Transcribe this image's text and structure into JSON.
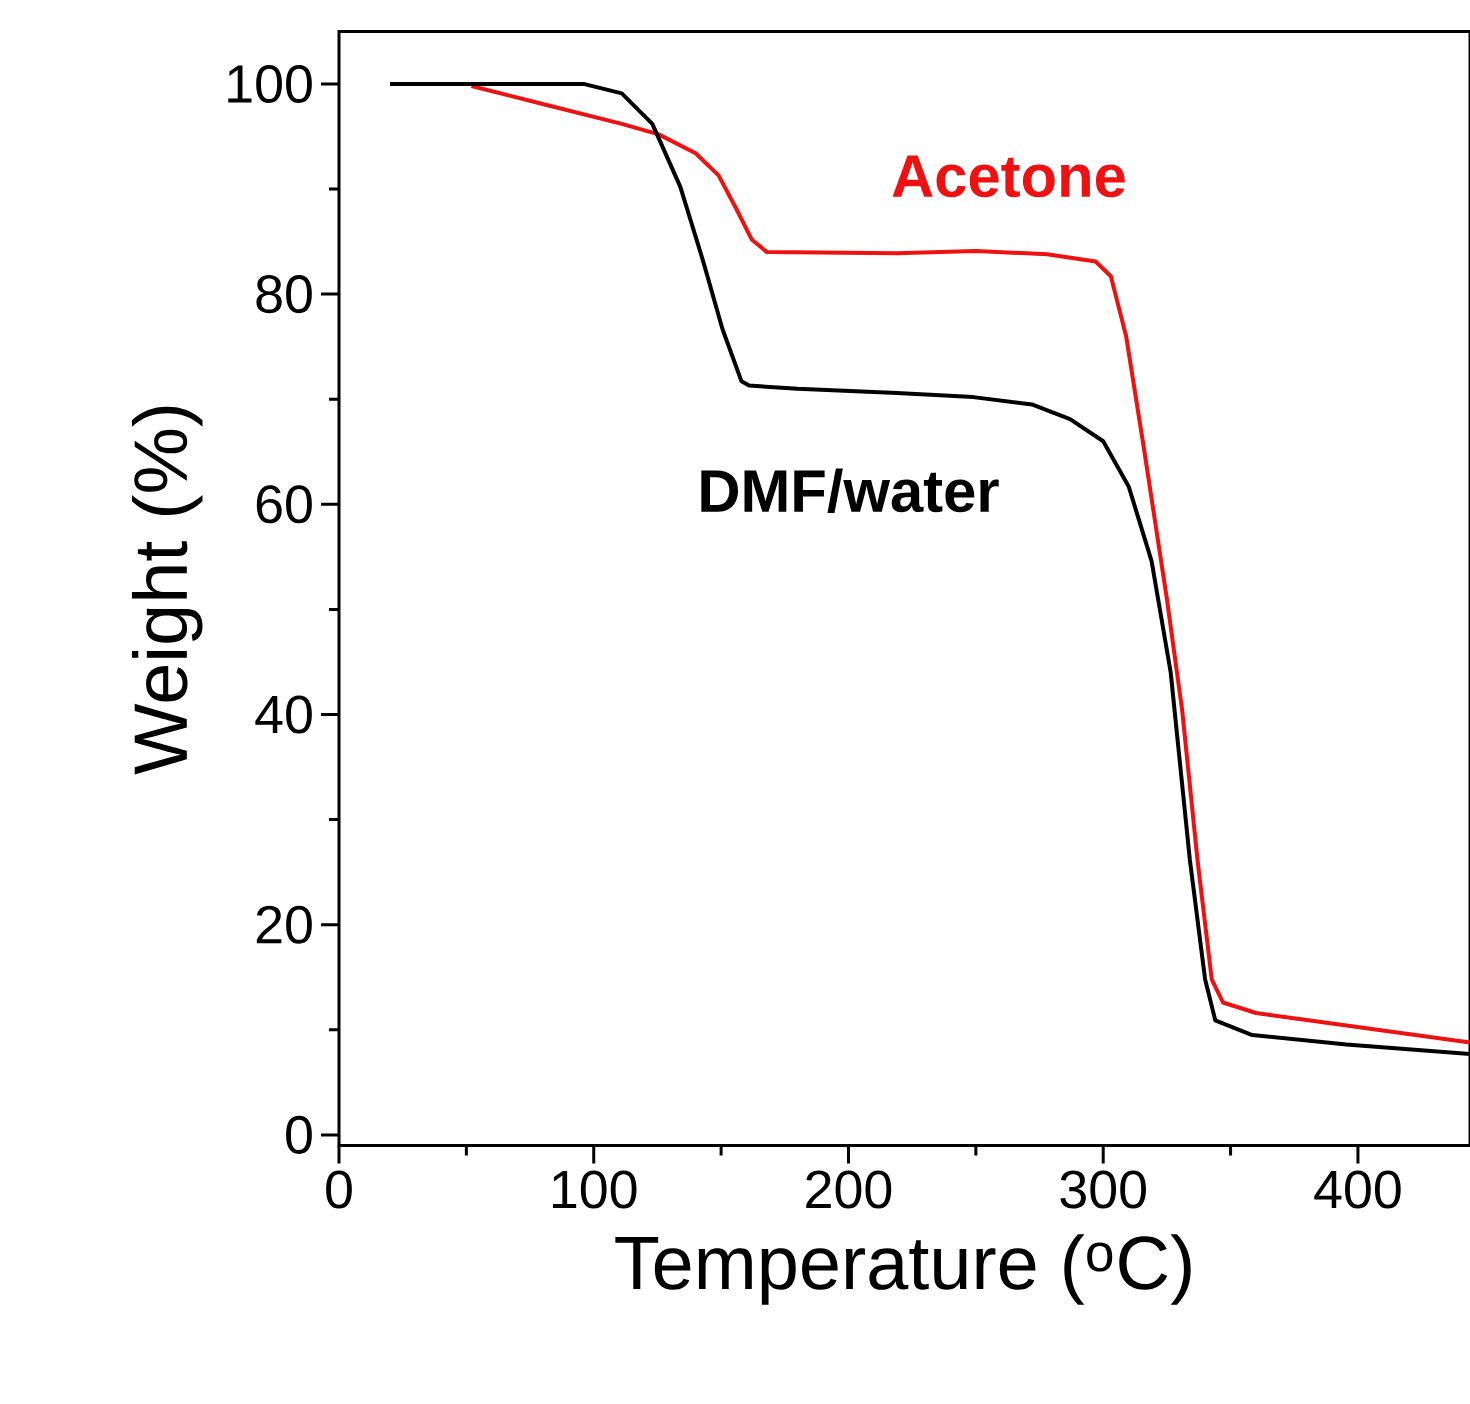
{
  "chart_data": {
    "type": "line",
    "xlabel": "Temperature ($^{o}$C)",
    "ylabel": "Weight (%)",
    "xlim": [
      0,
      444
    ],
    "ylim": [
      -1,
      105
    ],
    "xticks": [
      0,
      {
        "value": 50,
        "label": null
      },
      100,
      {
        "value": 150,
        "label": null
      },
      200,
      {
        "value": 250,
        "label": null
      },
      300,
      {
        "value": 350,
        "label": null
      },
      400
    ],
    "yticks": [
      0,
      {
        "value": 10,
        "label": null
      },
      20,
      {
        "value": 30,
        "label": null
      },
      40,
      {
        "value": 50,
        "label": null
      },
      60,
      {
        "value": 70,
        "label": null
      },
      80,
      {
        "value": 90,
        "label": null
      },
      100
    ],
    "series": [
      {
        "name": "Acetone",
        "color": "#ee1111",
        "x": [
          52,
          81.5,
          111,
          125.5,
          140,
          149,
          156,
          162,
          168,
          219,
          250,
          278,
          297,
          303,
          309,
          316,
          325,
          331,
          337,
          342.6,
          347,
          360,
          395.5,
          444
        ],
        "values": [
          99.8,
          98.0,
          96.2,
          95.2,
          93.4,
          91.3,
          88.1,
          85.2,
          84.0,
          83.9,
          84.1,
          83.8,
          83.1,
          81.7,
          76.0,
          65.3,
          51.0,
          40.4,
          26.2,
          14.8,
          12.6,
          11.6,
          10.4,
          8.8
        ]
      },
      {
        "name": "DMF/water",
        "color": "#000000",
        "x": [
          20,
          96,
          111,
          123,
          134,
          143,
          150.5,
          158,
          161,
          180,
          219,
          249,
          272,
          287,
          300,
          310,
          319,
          326.5,
          334,
          340,
          344,
          358.5,
          395.5,
          444
        ],
        "values": [
          100,
          100,
          99.1,
          96.2,
          90.2,
          83.1,
          76.7,
          71.7,
          71.3,
          71.0,
          70.6,
          70.2,
          69.5,
          68.1,
          66.0,
          61.7,
          54.6,
          44,
          26.2,
          14.8,
          10.9,
          9.5,
          8.6,
          7.7
        ]
      }
    ]
  }
}
